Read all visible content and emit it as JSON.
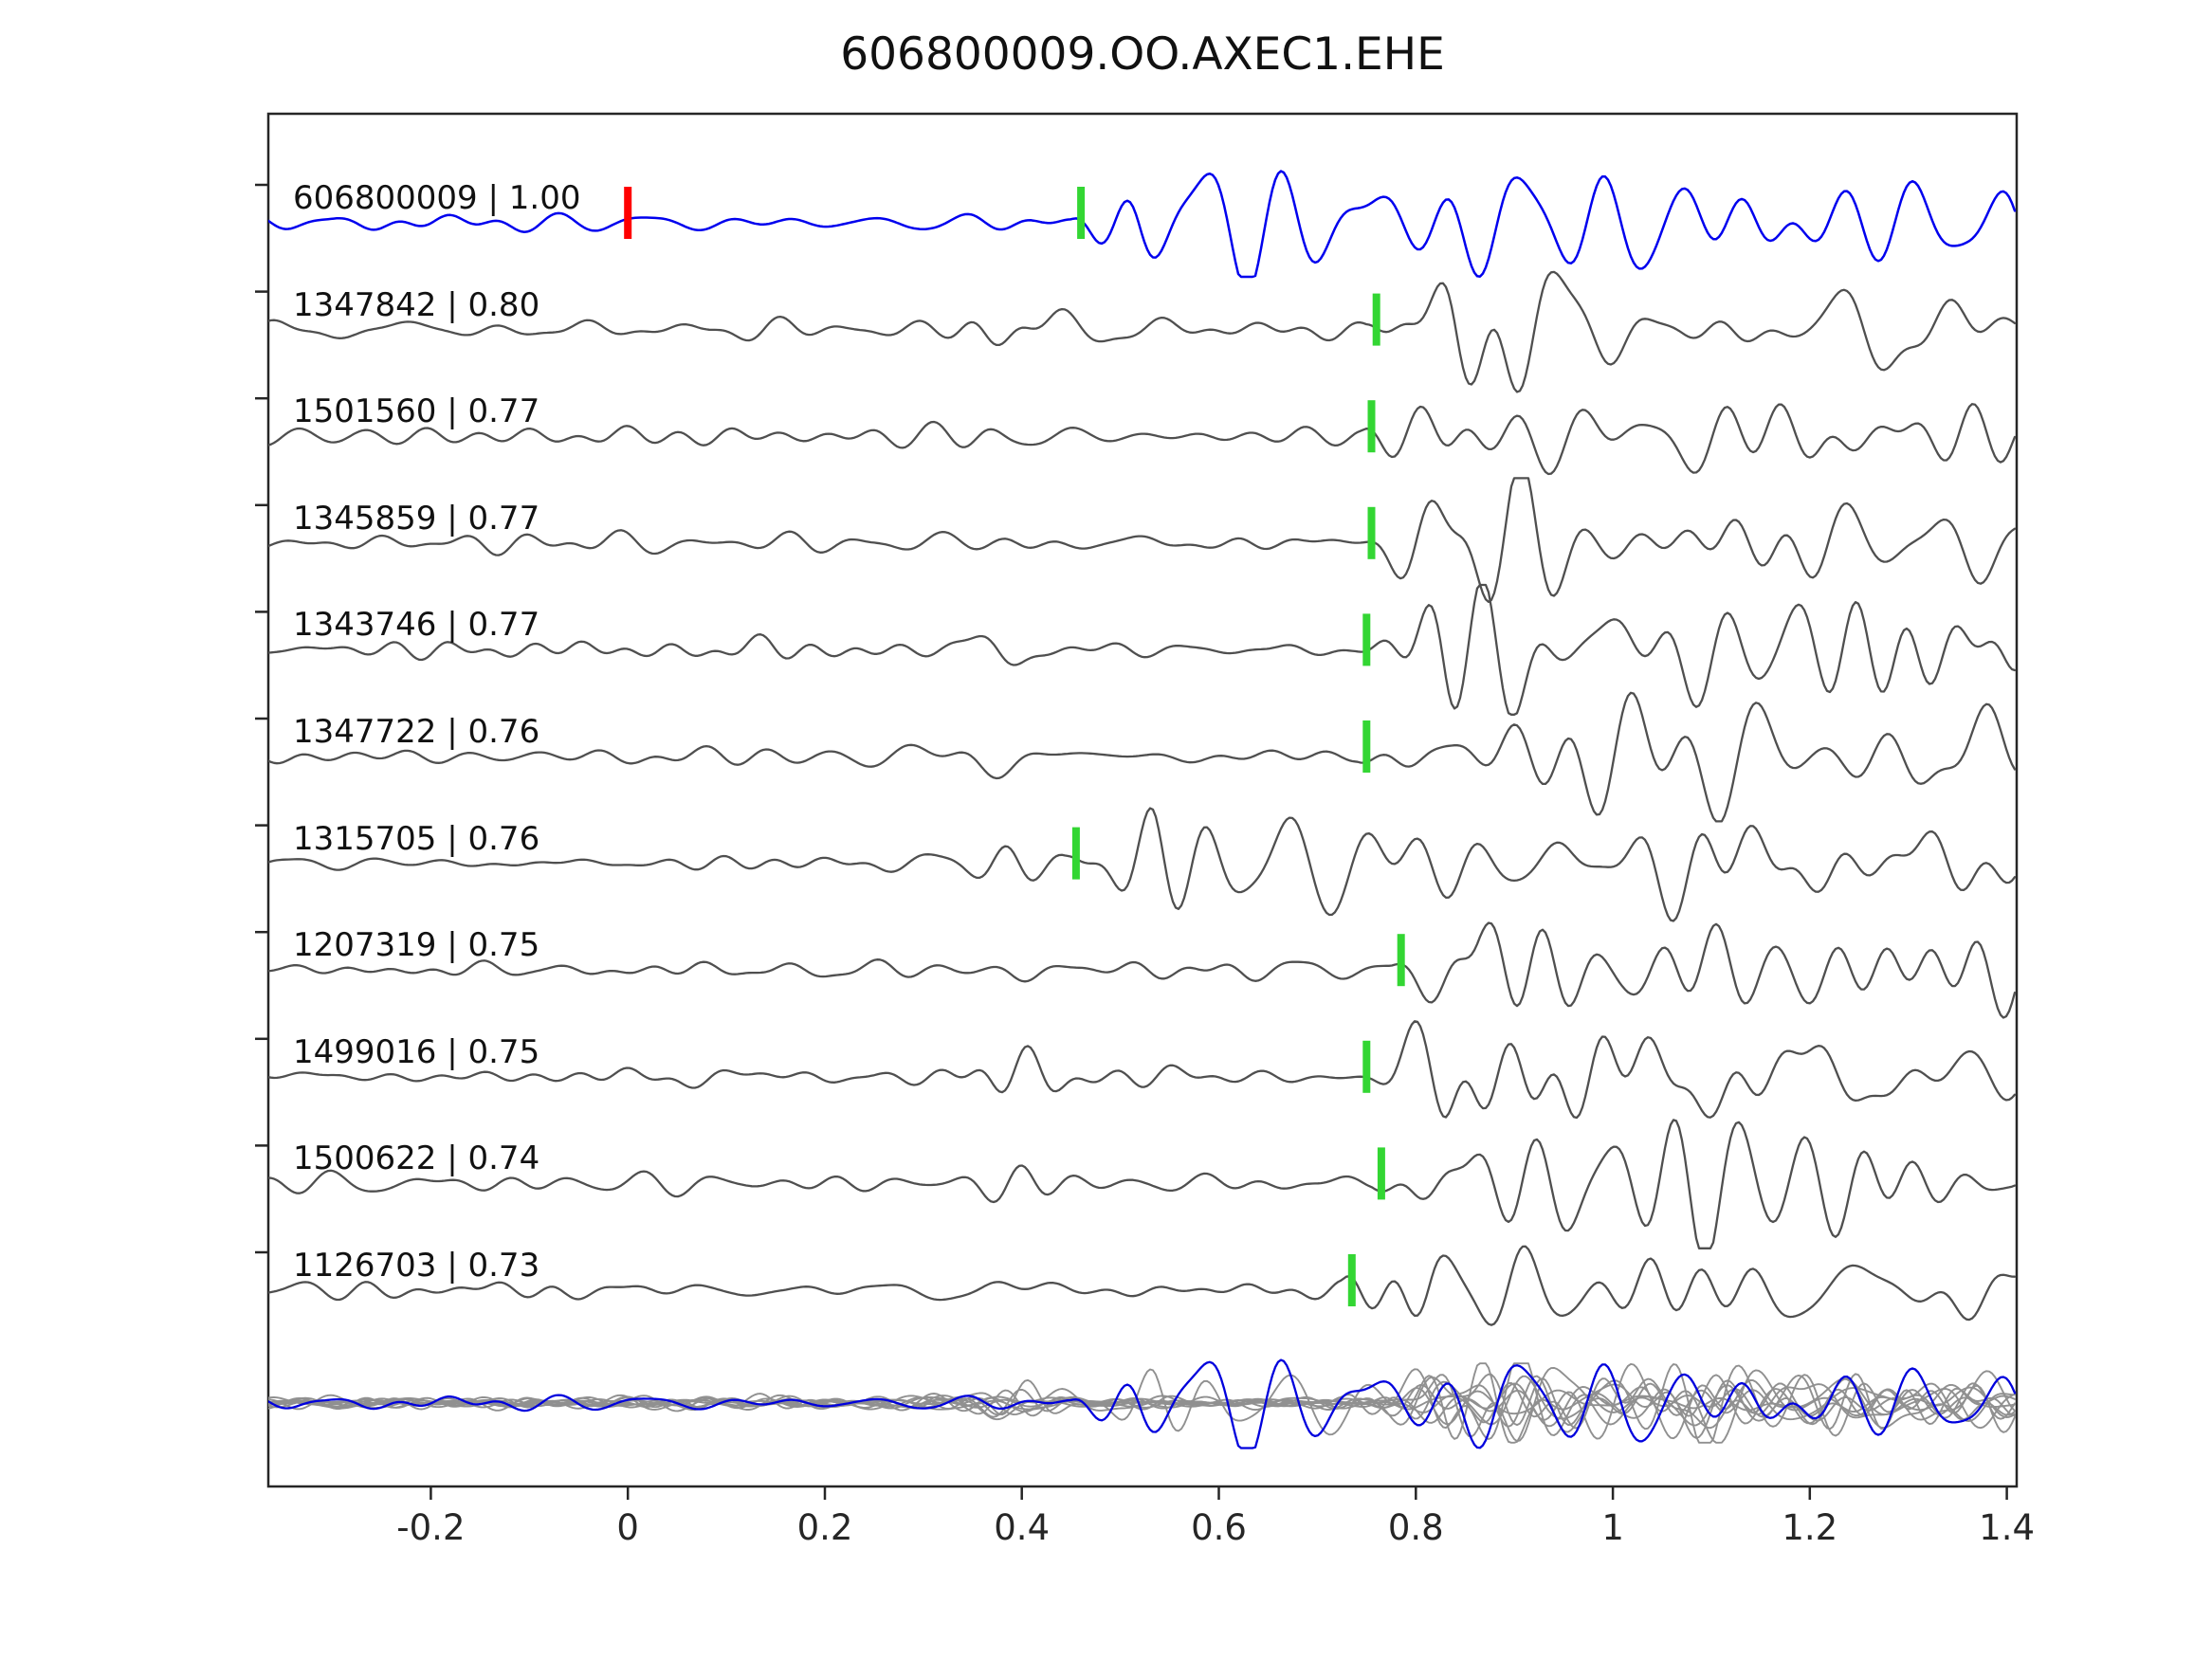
{
  "title": "606800009.OO.AXEC1.EHE",
  "chart_data": {
    "type": "line",
    "title": "606800009.OO.AXEC1.EHE",
    "subtitle": "",
    "xlabel": "",
    "ylabel": "",
    "xlim": [
      -0.365,
      1.41
    ],
    "grid": false,
    "legend": "none",
    "colors": {
      "template_trace": "#0000ee",
      "detection_trace": "#4f4f4f",
      "pick_marker": "#33d633",
      "template_origin_marker": "#ff0000",
      "overlay_trace": "#909090",
      "overlay_template": "#0000dd",
      "axis": "#262626"
    },
    "xticks": [
      {
        "value": -0.2,
        "label": "-0.2"
      },
      {
        "value": 0,
        "label": "0"
      },
      {
        "value": 0.2,
        "label": "0.2"
      },
      {
        "value": 0.4,
        "label": "0.4"
      },
      {
        "value": 0.6,
        "label": "0.6"
      },
      {
        "value": 0.8,
        "label": "0.8"
      },
      {
        "value": 1,
        "label": "1"
      },
      {
        "value": 1.2,
        "label": "1.2"
      },
      {
        "value": 1.4,
        "label": "1.4"
      }
    ],
    "traces": [
      {
        "id": "606800009",
        "cc": 1.0,
        "label": "606800009 | 1.00",
        "pick_time": 0.46,
        "origin_marker_time": 0.0,
        "role": "template"
      },
      {
        "id": "1347842",
        "cc": 0.8,
        "label": "1347842 | 0.80",
        "pick_time": 0.76,
        "role": "detection"
      },
      {
        "id": "1501560",
        "cc": 0.77,
        "label": "1501560 | 0.77",
        "pick_time": 0.755,
        "role": "detection"
      },
      {
        "id": "1345859",
        "cc": 0.77,
        "label": "1345859 | 0.77",
        "pick_time": 0.755,
        "role": "detection"
      },
      {
        "id": "1343746",
        "cc": 0.77,
        "label": "1343746 | 0.77",
        "pick_time": 0.75,
        "role": "detection"
      },
      {
        "id": "1347722",
        "cc": 0.76,
        "label": "1347722 | 0.76",
        "pick_time": 0.75,
        "role": "detection"
      },
      {
        "id": "1315705",
        "cc": 0.76,
        "label": "1315705 | 0.76",
        "pick_time": 0.455,
        "role": "detection"
      },
      {
        "id": "1207319",
        "cc": 0.75,
        "label": "1207319 | 0.75",
        "pick_time": 0.785,
        "role": "detection"
      },
      {
        "id": "1499016",
        "cc": 0.75,
        "label": "1499016 | 0.75",
        "pick_time": 0.75,
        "role": "detection"
      },
      {
        "id": "1500622",
        "cc": 0.74,
        "label": "1500622 | 0.74",
        "pick_time": 0.765,
        "role": "detection"
      },
      {
        "id": "1126703",
        "cc": 0.73,
        "label": "1126703 | 0.73",
        "pick_time": 0.735,
        "role": "detection"
      }
    ],
    "overlay_row": {
      "description": "all detection traces overlaid in gray with blue template waveform on top"
    }
  }
}
